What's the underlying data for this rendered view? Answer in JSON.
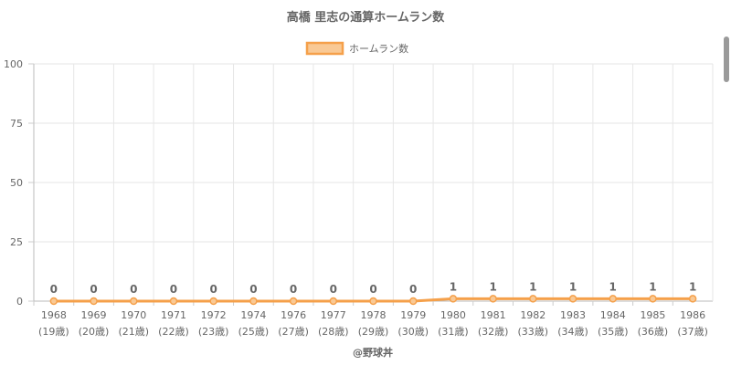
{
  "chart_data": {
    "type": "line",
    "title": "高橋 里志の通算ホームラン数",
    "legend_position": "top",
    "grid": true,
    "ylim": [
      0,
      100
    ],
    "yticks": [
      0,
      25,
      50,
      75,
      100
    ],
    "categories": [
      "1968",
      "1969",
      "1970",
      "1971",
      "1972",
      "1974",
      "1976",
      "1977",
      "1978",
      "1979",
      "1980",
      "1981",
      "1982",
      "1983",
      "1984",
      "1985",
      "1986"
    ],
    "category_sublabels": [
      "(19歳)",
      "(20歳)",
      "(21歳)",
      "(22歳)",
      "(23歳)",
      "(25歳)",
      "(27歳)",
      "(28歳)",
      "(29歳)",
      "(30歳)",
      "(31歳)",
      "(32歳)",
      "(33歳)",
      "(34歳)",
      "(35歳)",
      "(36歳)",
      "(37歳)"
    ],
    "series": [
      {
        "name": "ホームラン数",
        "color": "#f5a04a",
        "fill": "#f9c995",
        "values": [
          0,
          0,
          0,
          0,
          0,
          0,
          0,
          0,
          0,
          0,
          1,
          1,
          1,
          1,
          1,
          1,
          1
        ]
      }
    ],
    "footer": "@野球丼"
  }
}
